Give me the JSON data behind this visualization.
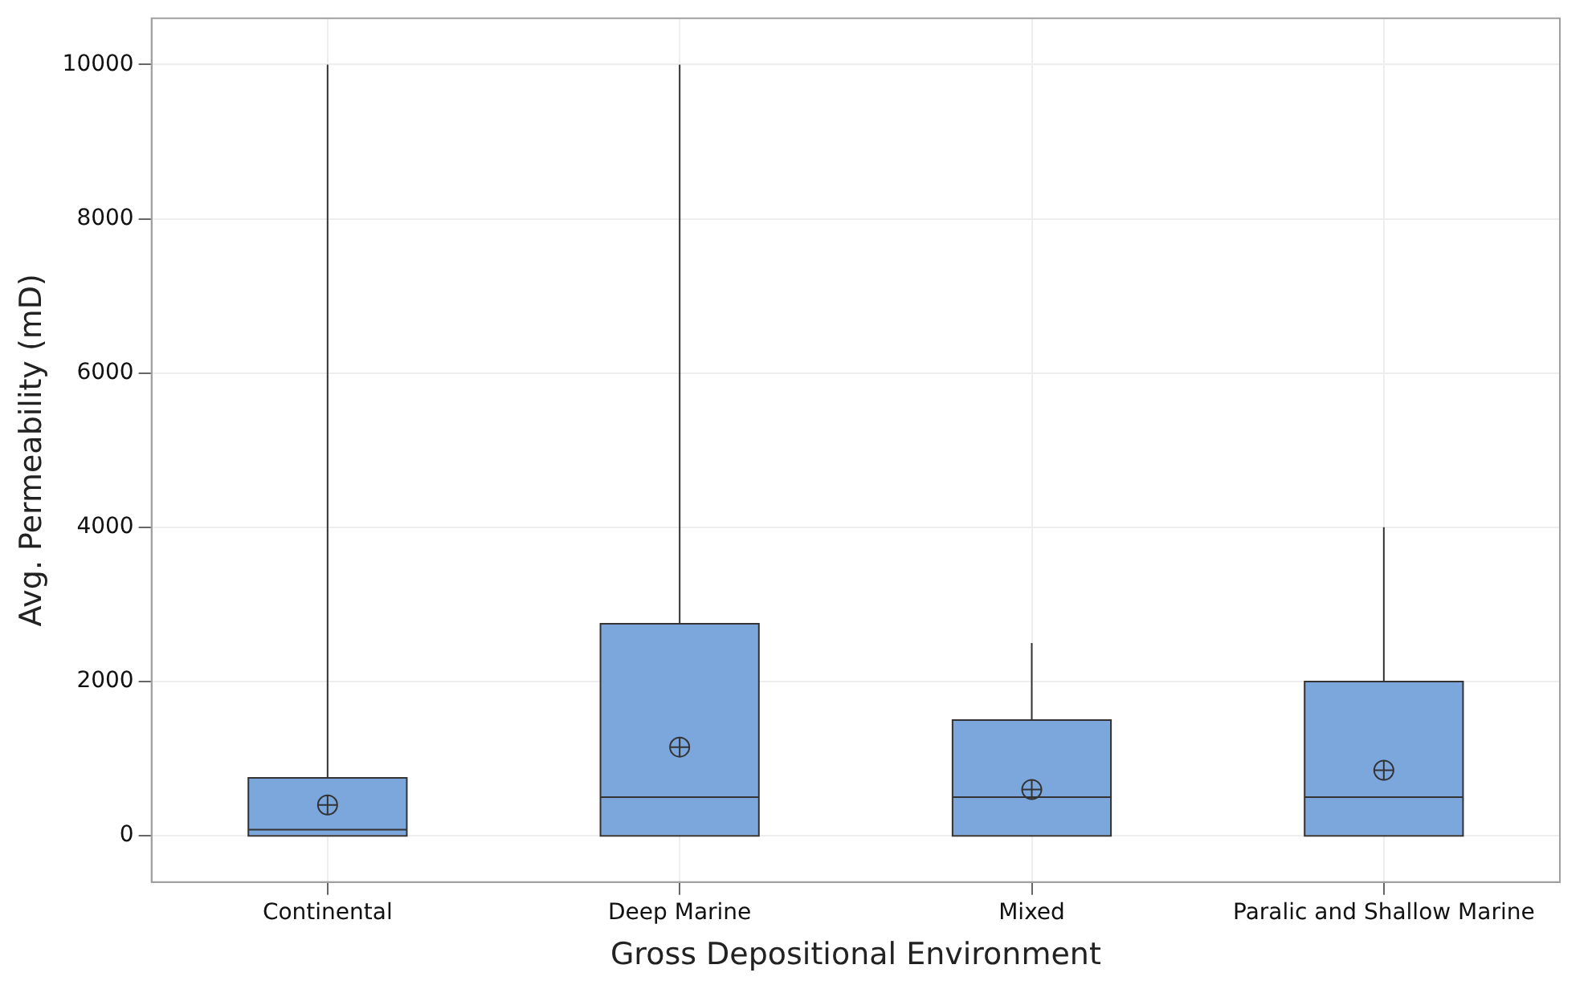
{
  "chart_data": {
    "type": "box",
    "xlabel": "Gross Depositional Environment",
    "ylabel": "Avg. Permeability (mD)",
    "categories": [
      "Continental",
      "Deep Marine",
      "Mixed",
      "Paralic and Shallow Marine"
    ],
    "color": "#7ba7dc",
    "boxes": [
      {
        "q1": 0,
        "median": 80,
        "q3": 750,
        "high": 10000,
        "mean": 400
      },
      {
        "q1": 0,
        "median": 500,
        "q3": 2750,
        "high": 10000,
        "mean": 1150
      },
      {
        "q1": 0,
        "median": 500,
        "q3": 1500,
        "high": 2500,
        "mean": 600
      },
      {
        "q1": 0,
        "median": 500,
        "q3": 2000,
        "high": 4000,
        "mean": 850
      }
    ],
    "ylim": [
      -600,
      10600
    ],
    "yticks": [
      0,
      2000,
      4000,
      6000,
      8000,
      10000
    ],
    "grid": true,
    "legend": false,
    "marker": "circle"
  }
}
